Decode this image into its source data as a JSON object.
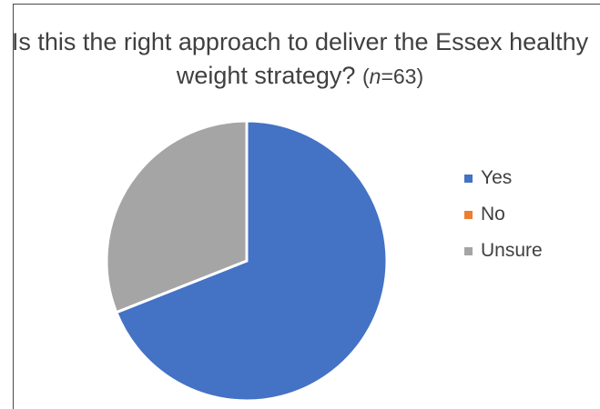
{
  "chart_data": {
    "type": "pie",
    "title": "Is this the right approach to deliver the Essex healthy weight strategy?",
    "subtitle_n": {
      "label": "n",
      "value": "63"
    },
    "categories": [
      "Yes",
      "No",
      "Unsure"
    ],
    "values": [
      69,
      0,
      31
    ],
    "colors": [
      "#4472C4",
      "#ED7D31",
      "#A5A5A5"
    ],
    "start_angle_deg": 0,
    "direction": "clockwise",
    "legend_position": "right"
  }
}
